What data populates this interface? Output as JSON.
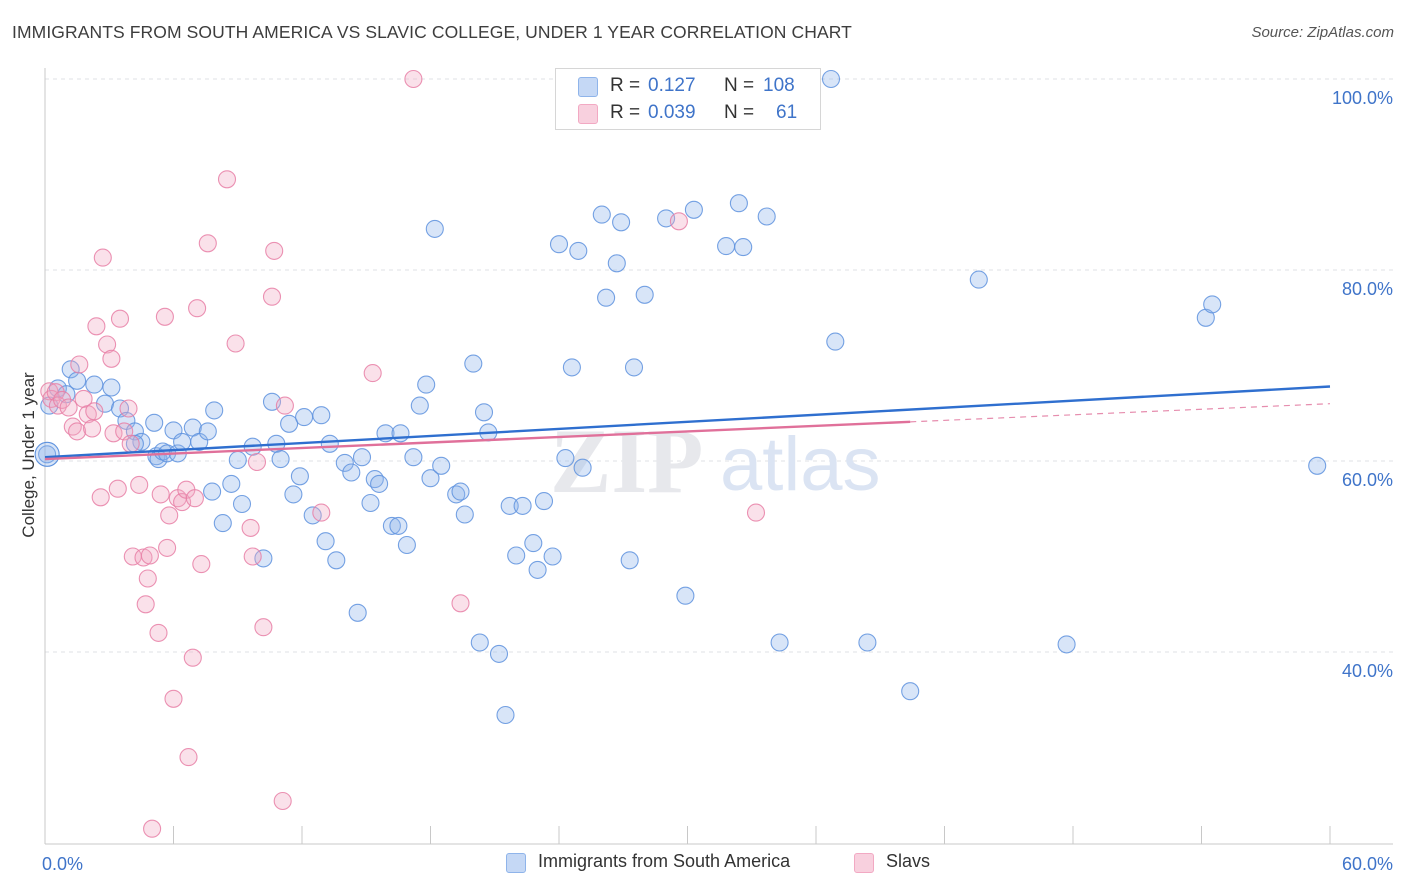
{
  "title": "IMMIGRANTS FROM SOUTH AMERICA VS SLAVIC COLLEGE, UNDER 1 YEAR CORRELATION CHART",
  "source": "Source: ZipAtlas.com",
  "watermark": {
    "zip": "ZIP",
    "atlas": "atlas"
  },
  "legend_top": {
    "rows": [
      {
        "r_label": "R =",
        "r_value": "0.127",
        "n_label": "N =",
        "n_value": "108",
        "color": "#8fb4ea"
      },
      {
        "r_label": "R =",
        "r_value": "0.039",
        "n_label": "N =",
        "n_value": "61",
        "color": "#f2a9c3"
      }
    ]
  },
  "legend_bottom": [
    {
      "label": "Immigrants from South America",
      "color": "#8fb4ea"
    },
    {
      "label": "Slavs",
      "color": "#f2a9c3"
    }
  ],
  "chart_data": {
    "type": "scatter",
    "title": "IMMIGRANTS FROM SOUTH AMERICA VS SLAVIC COLLEGE, UNDER 1 YEAR CORRELATION CHART",
    "xlabel": "",
    "ylabel": "College, Under 1 year",
    "xlim": [
      0,
      60
    ],
    "ylim": [
      22,
      102
    ],
    "x_ticks": [
      0,
      6,
      12,
      18,
      24,
      30,
      36,
      42,
      48,
      54,
      60
    ],
    "x_tick_labels": [
      {
        "value": 0,
        "label": "0.0%"
      },
      {
        "value": 60,
        "label": "60.0%"
      }
    ],
    "y_tick_labels": [
      {
        "value": 40,
        "label": "40.0%"
      },
      {
        "value": 60,
        "label": "60.0%"
      },
      {
        "value": 80,
        "label": "80.0%"
      },
      {
        "value": 100,
        "label": "100.0%"
      }
    ],
    "gridlines": [
      40,
      60,
      80,
      100
    ],
    "series": [
      {
        "name": "Immigrants from South America",
        "color": "#8fb4ea",
        "stroke": "#5e92de",
        "trend": {
          "x": [
            0,
            60
          ],
          "y": [
            60.4,
            67.8
          ],
          "color": "#2f6fcf"
        },
        "points": [
          [
            0.1,
            60.7
          ],
          [
            0.2,
            65.8
          ],
          [
            0.6,
            67.6
          ],
          [
            1.0,
            67.0
          ],
          [
            1.2,
            69.6
          ],
          [
            1.5,
            68.4
          ],
          [
            2.3,
            68.0
          ],
          [
            3.1,
            67.7
          ],
          [
            2.8,
            66.0
          ],
          [
            3.5,
            65.5
          ],
          [
            3.8,
            64.2
          ],
          [
            4.2,
            63.1
          ],
          [
            4.5,
            62.0
          ],
          [
            4.2,
            61.8
          ],
          [
            5.1,
            64.0
          ],
          [
            5.2,
            60.5
          ],
          [
            5.3,
            60.2
          ],
          [
            5.5,
            61.0
          ],
          [
            5.7,
            60.8
          ],
          [
            6.2,
            60.8
          ],
          [
            6.0,
            63.2
          ],
          [
            6.4,
            62.0
          ],
          [
            6.9,
            63.5
          ],
          [
            7.2,
            62.0
          ],
          [
            7.6,
            63.1
          ],
          [
            7.8,
            56.8
          ],
          [
            7.9,
            65.3
          ],
          [
            8.3,
            53.5
          ],
          [
            8.7,
            57.6
          ],
          [
            9.0,
            60.1
          ],
          [
            9.2,
            55.5
          ],
          [
            9.7,
            61.5
          ],
          [
            10.2,
            49.8
          ],
          [
            10.6,
            66.2
          ],
          [
            10.8,
            61.8
          ],
          [
            11.0,
            60.2
          ],
          [
            11.4,
            63.9
          ],
          [
            11.6,
            56.5
          ],
          [
            11.9,
            58.4
          ],
          [
            12.1,
            64.6
          ],
          [
            12.5,
            54.3
          ],
          [
            12.9,
            64.8
          ],
          [
            13.1,
            51.6
          ],
          [
            13.3,
            61.8
          ],
          [
            13.6,
            49.6
          ],
          [
            14.0,
            59.8
          ],
          [
            14.3,
            58.8
          ],
          [
            14.6,
            44.1
          ],
          [
            14.8,
            60.4
          ],
          [
            15.2,
            55.6
          ],
          [
            15.4,
            58.1
          ],
          [
            15.6,
            57.6
          ],
          [
            15.9,
            62.9
          ],
          [
            16.2,
            53.2
          ],
          [
            16.5,
            53.2
          ],
          [
            16.6,
            62.9
          ],
          [
            16.9,
            51.2
          ],
          [
            17.2,
            60.4
          ],
          [
            17.5,
            65.8
          ],
          [
            17.8,
            68.0
          ],
          [
            18.0,
            58.2
          ],
          [
            18.2,
            84.3
          ],
          [
            18.5,
            59.5
          ],
          [
            19.2,
            56.5
          ],
          [
            19.4,
            56.8
          ],
          [
            19.6,
            54.4
          ],
          [
            20.0,
            70.2
          ],
          [
            20.3,
            41.0
          ],
          [
            20.5,
            65.1
          ],
          [
            20.7,
            63.0
          ],
          [
            21.2,
            39.8
          ],
          [
            21.5,
            33.4
          ],
          [
            21.7,
            55.3
          ],
          [
            22.0,
            50.1
          ],
          [
            22.3,
            55.3
          ],
          [
            22.8,
            51.4
          ],
          [
            23.0,
            48.6
          ],
          [
            23.3,
            55.8
          ],
          [
            23.7,
            50.0
          ],
          [
            24.0,
            82.7
          ],
          [
            24.3,
            60.3
          ],
          [
            24.6,
            69.8
          ],
          [
            24.9,
            82.0
          ],
          [
            25.1,
            59.3
          ],
          [
            26.0,
            85.8
          ],
          [
            26.2,
            77.1
          ],
          [
            26.7,
            80.7
          ],
          [
            26.9,
            85.0
          ],
          [
            27.3,
            49.6
          ],
          [
            27.5,
            69.8
          ],
          [
            28.0,
            77.4
          ],
          [
            29.0,
            85.4
          ],
          [
            29.9,
            45.9
          ],
          [
            30.3,
            86.3
          ],
          [
            31.8,
            82.5
          ],
          [
            32.4,
            87.0
          ],
          [
            32.6,
            82.4
          ],
          [
            33.7,
            85.6
          ],
          [
            34.3,
            41.0
          ],
          [
            36.7,
            100.0
          ],
          [
            36.9,
            72.5
          ],
          [
            38.4,
            41.0
          ],
          [
            40.4,
            35.9
          ],
          [
            43.6,
            79.0
          ],
          [
            47.7,
            40.8
          ],
          [
            54.2,
            75.0
          ],
          [
            54.5,
            76.4
          ],
          [
            59.4,
            59.5
          ]
        ]
      },
      {
        "name": "Slavs",
        "color": "#f2a9c3",
        "stroke": "#e87fa6",
        "trend": {
          "x": [
            0,
            40.4
          ],
          "y": [
            60.2,
            64.1
          ],
          "color": "#e0709a"
        },
        "trend_dashed": {
          "x": [
            40.4,
            60
          ],
          "y": [
            64.1,
            66.0
          ]
        },
        "points": [
          [
            0.2,
            67.3
          ],
          [
            0.3,
            66.5
          ],
          [
            0.5,
            67.2
          ],
          [
            0.6,
            65.8
          ],
          [
            0.8,
            66.4
          ],
          [
            1.1,
            65.6
          ],
          [
            1.3,
            63.6
          ],
          [
            1.5,
            63.1
          ],
          [
            1.6,
            70.1
          ],
          [
            1.8,
            66.5
          ],
          [
            2.0,
            64.9
          ],
          [
            2.2,
            63.4
          ],
          [
            2.3,
            65.2
          ],
          [
            2.4,
            74.1
          ],
          [
            2.6,
            56.2
          ],
          [
            2.7,
            81.3
          ],
          [
            2.9,
            72.2
          ],
          [
            3.1,
            70.7
          ],
          [
            3.2,
            62.9
          ],
          [
            3.4,
            57.1
          ],
          [
            3.5,
            74.9
          ],
          [
            3.7,
            63.1
          ],
          [
            3.9,
            65.5
          ],
          [
            4.0,
            61.8
          ],
          [
            4.1,
            50.0
          ],
          [
            4.4,
            57.5
          ],
          [
            4.6,
            49.9
          ],
          [
            4.7,
            45.0
          ],
          [
            4.8,
            47.7
          ],
          [
            4.9,
            50.1
          ],
          [
            5.0,
            21.5
          ],
          [
            5.3,
            42.0
          ],
          [
            5.4,
            56.5
          ],
          [
            5.6,
            75.1
          ],
          [
            5.7,
            50.9
          ],
          [
            5.8,
            54.3
          ],
          [
            6.0,
            35.1
          ],
          [
            6.2,
            56.1
          ],
          [
            6.4,
            55.7
          ],
          [
            6.6,
            57.0
          ],
          [
            6.7,
            29.0
          ],
          [
            6.9,
            39.4
          ],
          [
            7.0,
            56.1
          ],
          [
            7.1,
            76.0
          ],
          [
            7.3,
            49.2
          ],
          [
            7.6,
            82.8
          ],
          [
            8.5,
            89.5
          ],
          [
            8.9,
            72.3
          ],
          [
            9.6,
            53.0
          ],
          [
            9.7,
            50.0
          ],
          [
            9.9,
            59.9
          ],
          [
            10.2,
            42.6
          ],
          [
            10.6,
            77.2
          ],
          [
            10.7,
            82.0
          ],
          [
            11.1,
            24.4
          ],
          [
            11.2,
            65.8
          ],
          [
            12.9,
            54.6
          ],
          [
            15.3,
            69.2
          ],
          [
            17.2,
            100.0
          ],
          [
            19.4,
            45.1
          ],
          [
            29.6,
            85.1
          ],
          [
            33.2,
            54.6
          ]
        ]
      }
    ]
  }
}
